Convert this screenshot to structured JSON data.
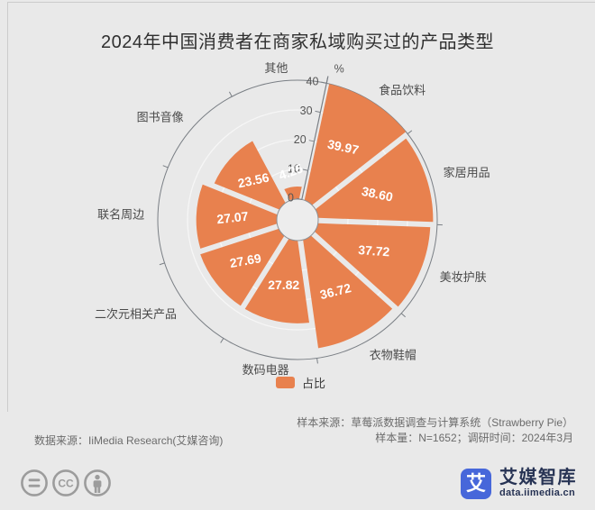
{
  "page": {
    "background": "#E9E9E9"
  },
  "chart_data": {
    "type": "rose",
    "title": "2024年中国消费者在商家私域购买过的产品类型",
    "series_name": "占比",
    "unit": "%",
    "categories": [
      "食品饮料",
      "家居用品",
      "美妆护肤",
      "衣物鞋帽",
      "数码电器",
      "二次元相关产品",
      "联名周边",
      "图书音像",
      "其他"
    ],
    "values": [
      39.97,
      38.6,
      37.72,
      36.72,
      27.82,
      27.69,
      27.07,
      23.56,
      4.25
    ],
    "value_label_decimals": 2,
    "radial_axis": {
      "min": 0,
      "max": 40,
      "interval": 10,
      "tick_labels": [
        "0",
        "10",
        "20",
        "30",
        "40"
      ],
      "unit_label": "%"
    },
    "legend": {
      "items": [
        "占比"
      ],
      "position": "bottom"
    },
    "colors": {
      "bar": "#E8814E",
      "value_label": "#FFFFFF",
      "axis_line": "#7A7F85",
      "grid_line": "#F6F6F6",
      "category_label": "#4A4A4A",
      "tick_label": "#555555",
      "hole_fill": "#EDEDED",
      "hole_stroke": "#8C9196"
    }
  },
  "footer": {
    "data_source": "数据来源：IiMedia Research(艾媒咨询)",
    "sample_source": "样本来源：草莓派数据调查与计算系统（Strawberry Pie）",
    "sample_info": "样本量：N=1652；调研时间：2024年3月"
  },
  "branding": {
    "logo_glyph": "艾",
    "name": "艾媒智库",
    "site": "data.iimedia.cn",
    "logo_color": "#4767DA"
  },
  "license_icons": [
    "equals-icon",
    "cc-icon",
    "person-icon"
  ]
}
